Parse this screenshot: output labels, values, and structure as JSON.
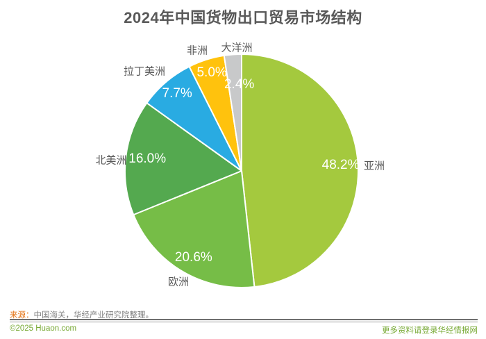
{
  "chart_data": {
    "type": "pie",
    "title": "2024年中国货物出口贸易市场结构",
    "unit": "%",
    "direction": "clockwise",
    "start_angle_deg": 0,
    "legend": "none",
    "value_label_color": "#ffffff",
    "category_label_color": "#595959",
    "segments": [
      {
        "label": "亚洲",
        "value": 48.2,
        "pct_label": "48.2%",
        "color": "#A4C93E"
      },
      {
        "label": "欧洲",
        "value": 20.6,
        "pct_label": "20.6%",
        "color": "#76BD47"
      },
      {
        "label": "北美洲",
        "value": 16.0,
        "pct_label": "16.0%",
        "color": "#54A94F"
      },
      {
        "label": "拉丁美洲",
        "value": 7.7,
        "pct_label": "7.7%",
        "color": "#29ABE2"
      },
      {
        "label": "非洲",
        "value": 5.0,
        "pct_label": "5.0%",
        "color": "#FFC20D"
      },
      {
        "label": "大洋洲",
        "value": 2.4,
        "pct_label": "2.4%",
        "color": "#C8C9CA"
      }
    ]
  },
  "footer": {
    "source_prefix": "来源：",
    "source_text": "中国海关，华经产业研究院整理。",
    "bottom_left": "©2025 Huaon.com",
    "bottom_right": "更多资料请登录华经情报网",
    "accent_color": "#E36C09",
    "watermark_color": "#76A832"
  }
}
